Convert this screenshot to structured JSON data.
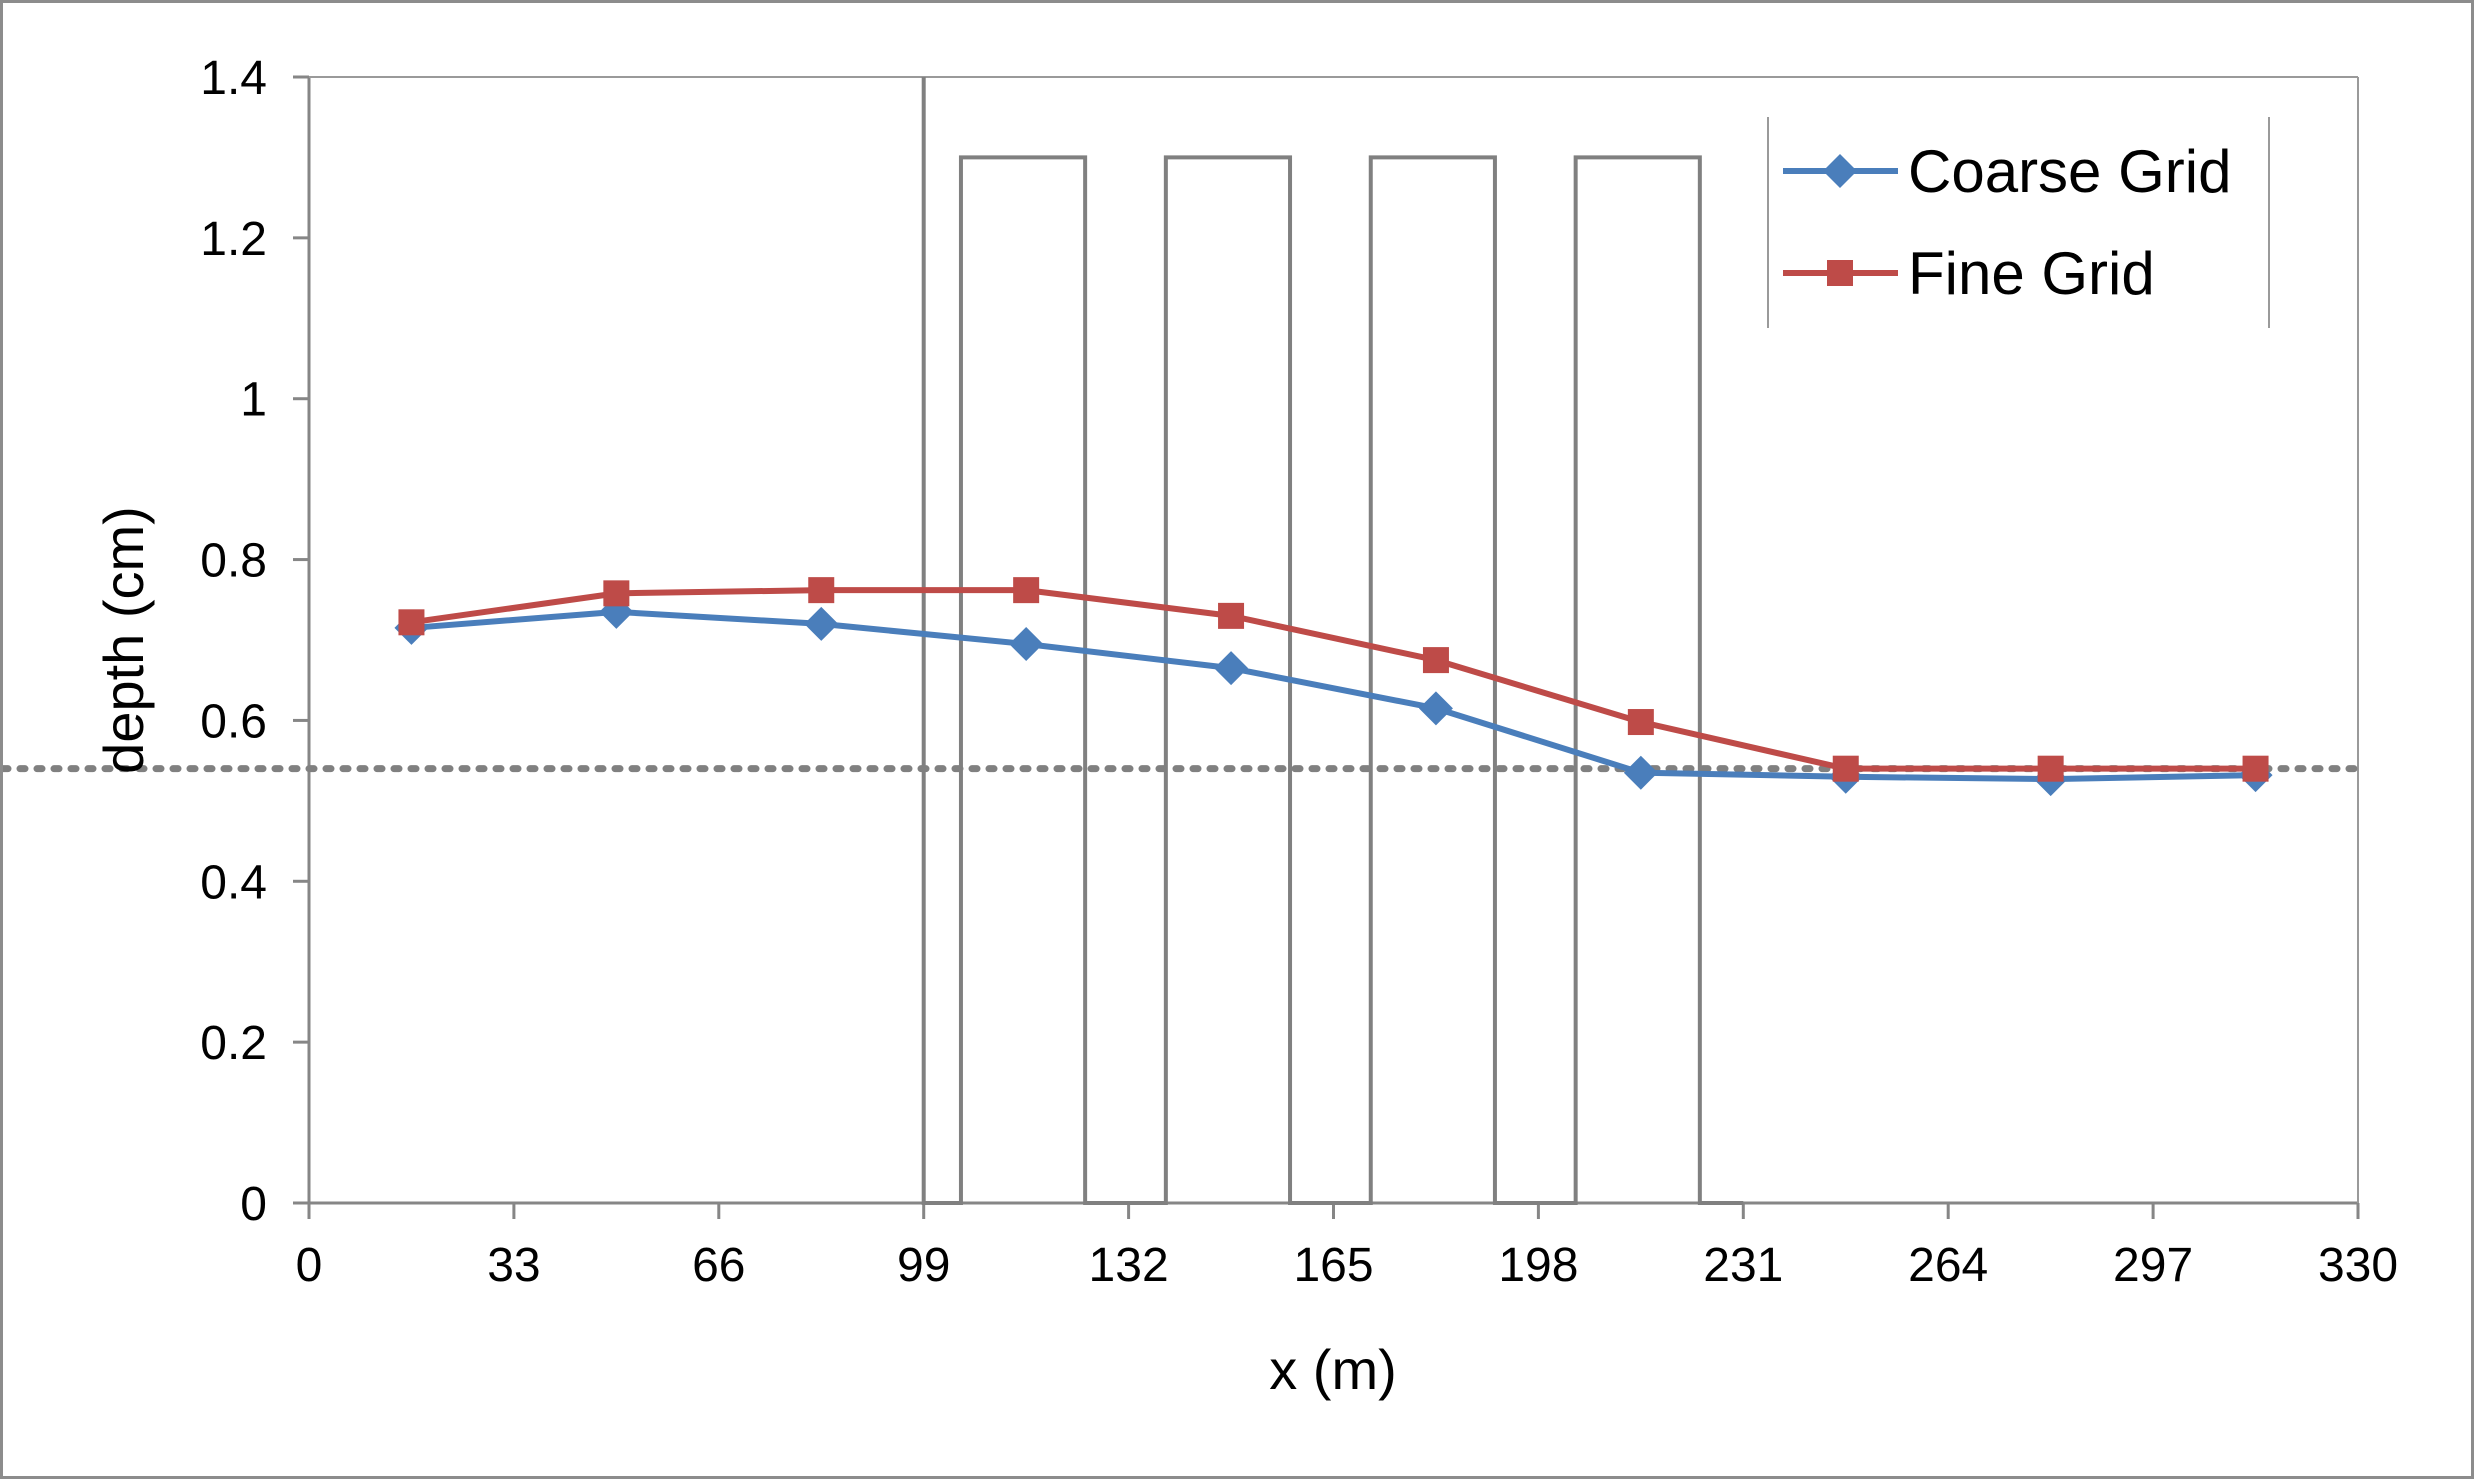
{
  "chart_data": {
    "type": "line",
    "xlabel": "x (m)",
    "ylabel": "depth (cm)",
    "xlim": [
      0,
      330
    ],
    "ylim": [
      0,
      1.4
    ],
    "x_ticks": [
      0,
      33,
      66,
      99,
      132,
      165,
      198,
      231,
      264,
      297,
      330
    ],
    "x_tick_labels": [
      "0",
      "33",
      "66",
      "99",
      "132",
      "165",
      "198",
      "231",
      "264",
      "297",
      "330"
    ],
    "y_ticks": [
      0,
      0.2,
      0.4,
      0.6,
      0.8,
      1.0,
      1.2,
      1.4
    ],
    "y_tick_labels": [
      "0",
      "0.2",
      "0.4",
      "0.6",
      "0.8",
      "1",
      "1.2",
      "1.4"
    ],
    "grid": false,
    "legend": {
      "placement": "top-right",
      "entries": [
        "Coarse Grid",
        "Fine Grid"
      ]
    },
    "series": [
      {
        "name": "Coarse Grid",
        "color": "#4a7ebb",
        "marker": "diamond",
        "x": [
          16.5,
          49.5,
          82.5,
          115.5,
          148.5,
          181.5,
          214.5,
          247.5,
          280.5,
          313.5
        ],
        "y": [
          0.715,
          0.735,
          0.72,
          0.695,
          0.665,
          0.615,
          0.535,
          0.53,
          0.527,
          0.532
        ]
      },
      {
        "name": "Fine Grid",
        "color": "#be4b48",
        "marker": "square",
        "x": [
          16.5,
          49.5,
          82.5,
          115.5,
          148.5,
          181.5,
          214.5,
          247.5,
          280.5,
          313.5
        ],
        "y": [
          0.722,
          0.758,
          0.762,
          0.762,
          0.73,
          0.675,
          0.598,
          0.54,
          0.54,
          0.54
        ]
      }
    ],
    "reference_line": {
      "y": 0.54,
      "style": "dotted",
      "color": "#808080"
    },
    "obstacles_profile": {
      "color": "#808080",
      "x": [
        99,
        99,
        105,
        105,
        125,
        125,
        138,
        138,
        158,
        158,
        171,
        171,
        191,
        191,
        204,
        204,
        224,
        224,
        231
      ],
      "y": [
        1.4,
        0,
        0,
        1.3,
        1.3,
        0,
        0,
        1.3,
        1.3,
        0,
        0,
        1.3,
        1.3,
        0,
        0,
        1.3,
        1.3,
        0,
        0
      ]
    }
  }
}
